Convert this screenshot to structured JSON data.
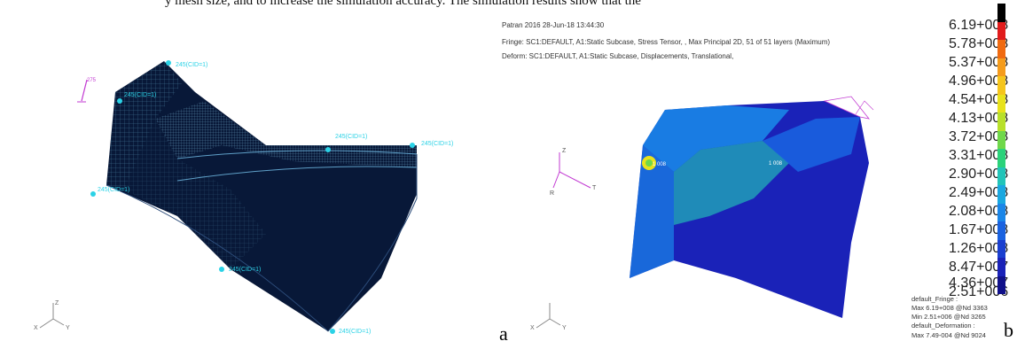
{
  "top_text": "y mesh size, and to increase the simulation accuracy. The simulation results show that the",
  "panel_a": {
    "caption": "a",
    "triad_label": "275",
    "spc_labels": [
      "245(CID=1)",
      "245(CID=1)",
      "245(CID=1)",
      "245(CID=1)",
      "245(CID=1)",
      "245(CID=1)",
      "245(CID=1)"
    ],
    "axis": {
      "z": "Z",
      "x": "X",
      "y": "Y"
    }
  },
  "panel_b": {
    "caption": "b",
    "header": [
      "Patran 2016 28-Jun-18 13:44:30",
      "Fringe: SC1:DEFAULT, A1:Static Subcase, Stress Tensor, , Max Principal 2D, 51 of 51 layers (Maximum)",
      "Deform: SC1:DEFAULT, A1:Static Subcase, Displacements, Translational,"
    ],
    "legend_ticks": [
      "6.19+008",
      "5.78+008",
      "5.37+008",
      "4.96+008",
      "4.54+008",
      "4.13+008",
      "3.72+008",
      "3.31+008",
      "2.90+008",
      "2.49+008",
      "2.08+008",
      "1.67+008",
      "1.26+008",
      "8.47+007",
      "4.36+007",
      "2.51+006"
    ],
    "legend_colors": [
      "#000000",
      "#e11c1c",
      "#f06a10",
      "#f59c1c",
      "#f5c51c",
      "#e8e21c",
      "#b8e02a",
      "#6fd84a",
      "#2bd27a",
      "#22c4b8",
      "#1aa8e0",
      "#1a86e8",
      "#1a62e0",
      "#1a3fd0",
      "#1a22b8",
      "#10108a"
    ],
    "footer": [
      "default_Fringe :",
      "Max 6.19+008 @Nd 3363",
      "Min 2.51+006 @Nd 3265",
      "default_Deformation :",
      "Max 7.49-004 @Nd 9024"
    ],
    "node_labels": [
      "1 008",
      "1 008"
    ],
    "axis": {
      "z": "Z",
      "t": "T",
      "r": "R",
      "x": "X",
      "y": "Y"
    }
  }
}
